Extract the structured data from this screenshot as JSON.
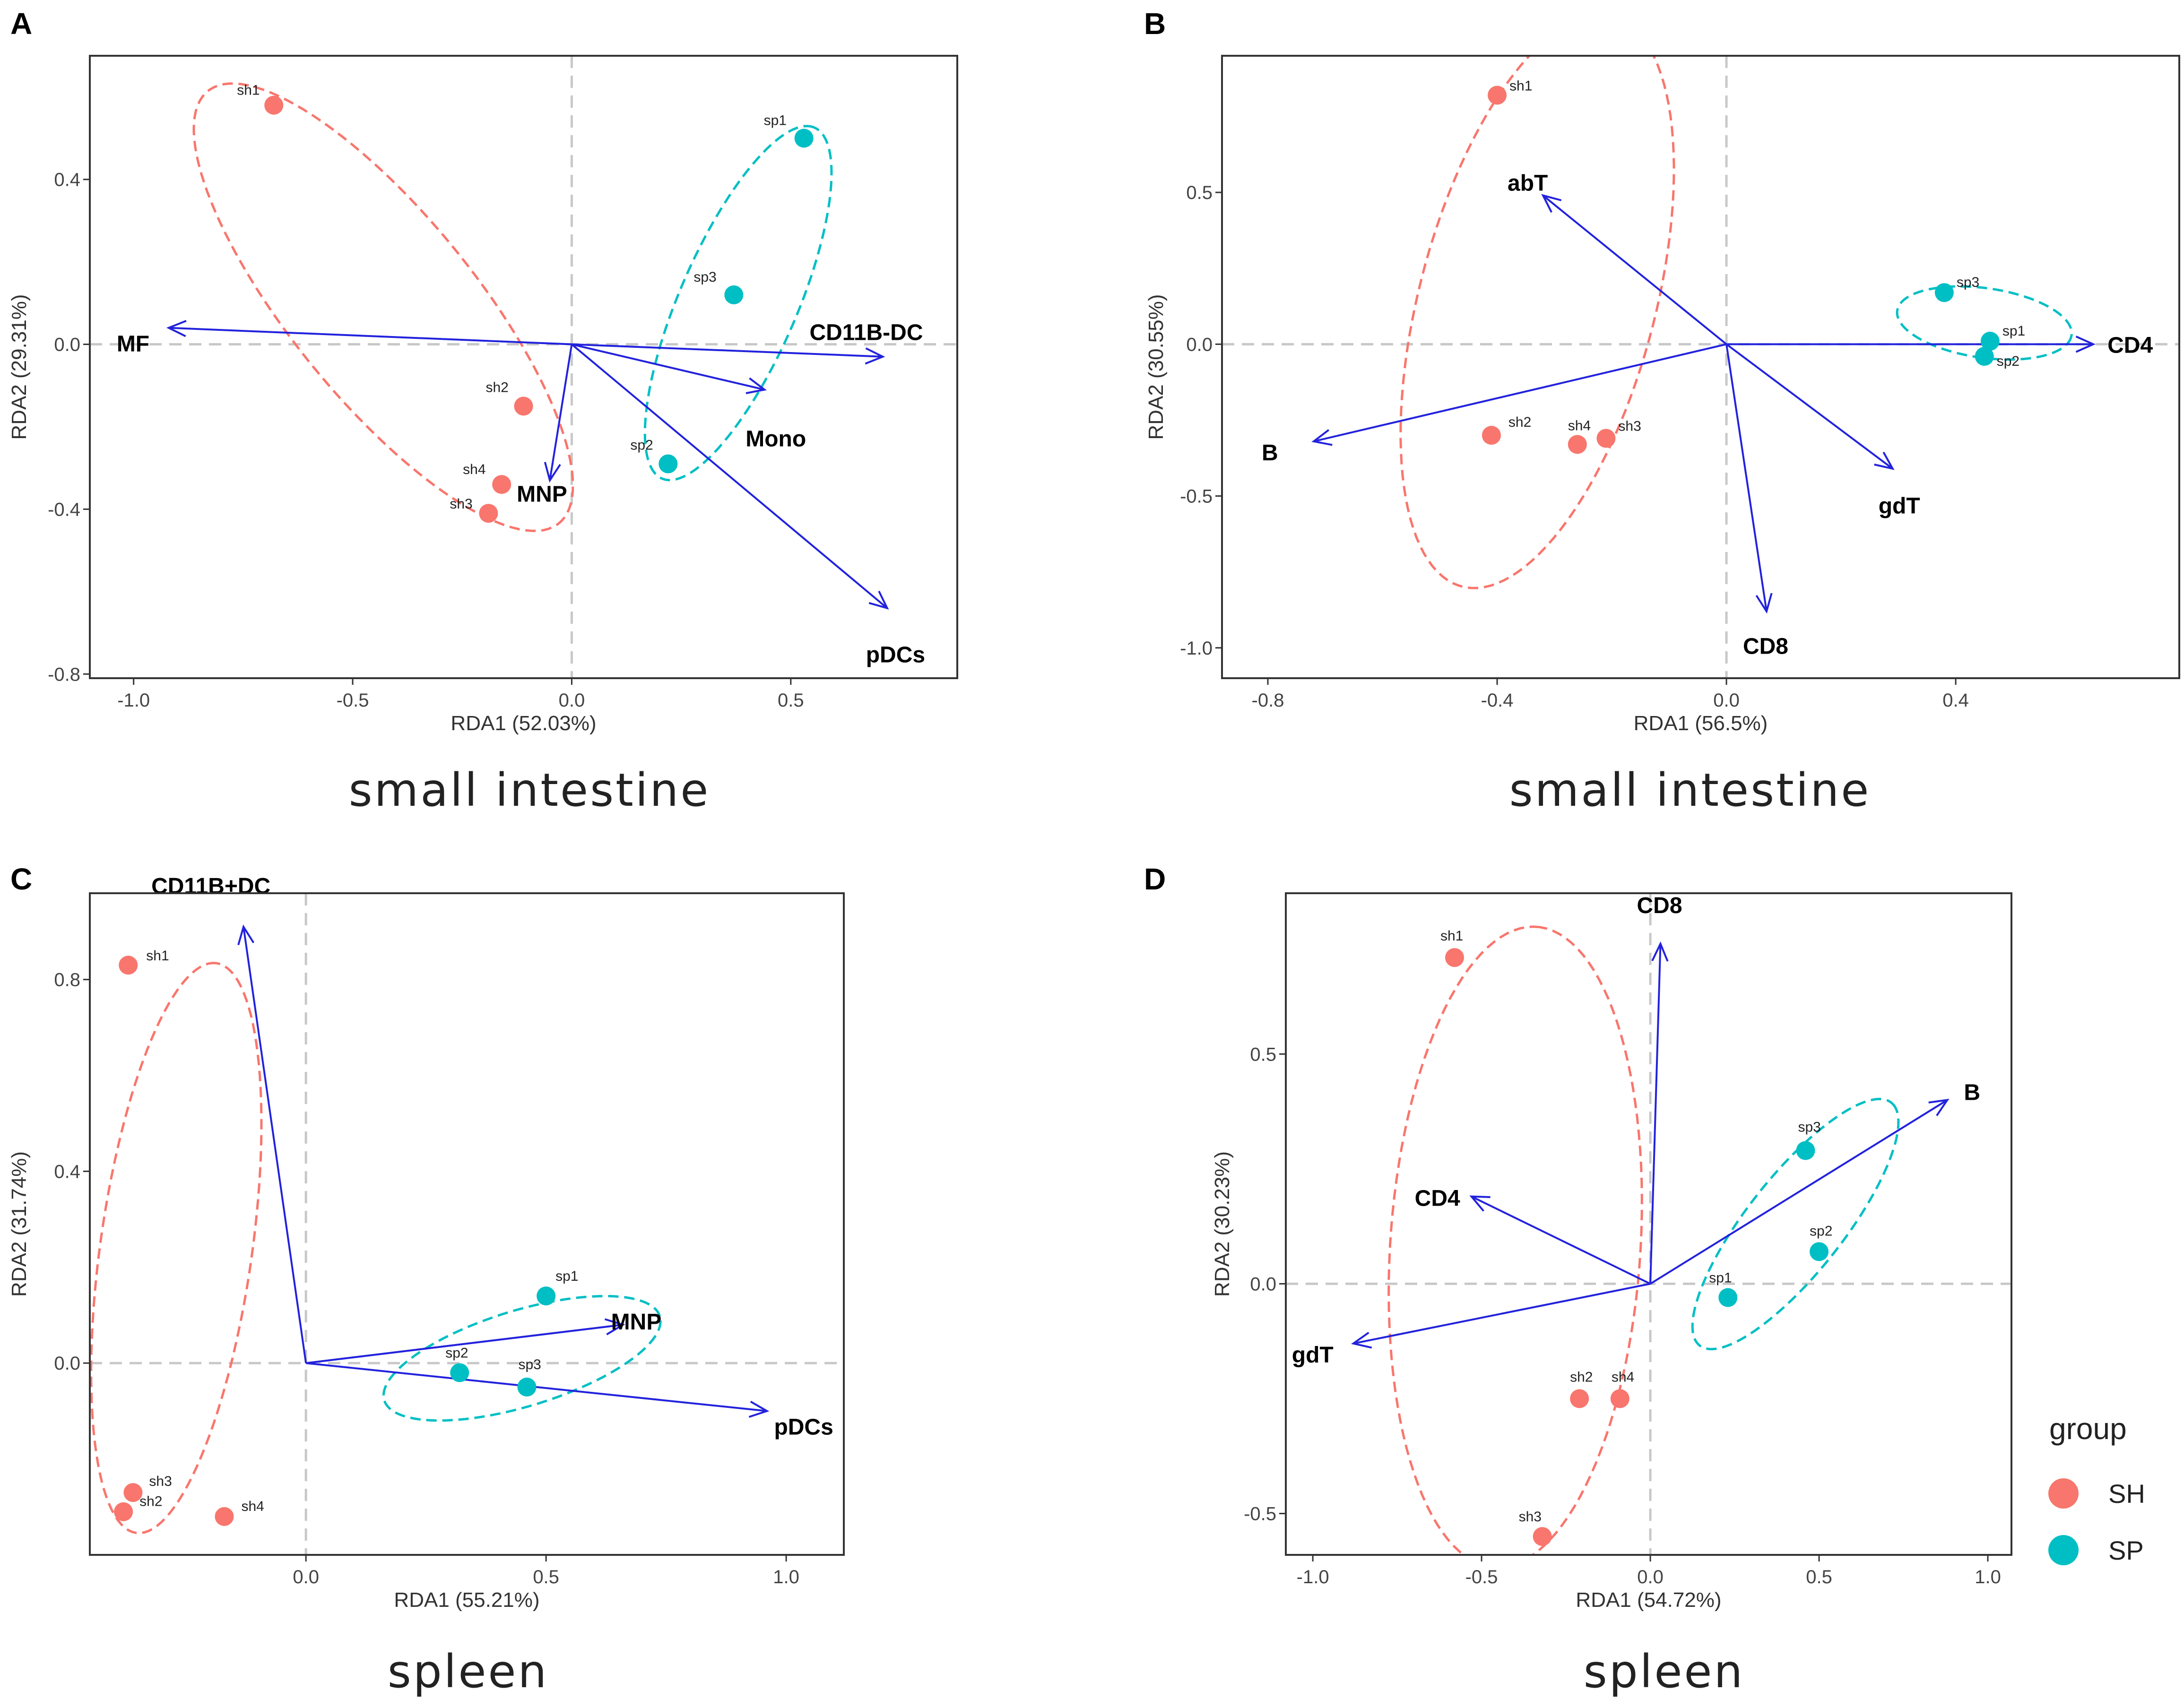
{
  "colors": {
    "sh": "#F8766D",
    "sp": "#00BFC4",
    "arrow": "#2222DD",
    "zero": "#c8c8c8"
  },
  "legend": {
    "title": "group",
    "items": [
      {
        "key": "sh",
        "label": "SH"
      },
      {
        "key": "sp",
        "label": "SP"
      }
    ]
  },
  "chart_data": [
    {
      "type": "scatter",
      "panel": "A",
      "caption": "small intestine",
      "xlabel": "RDA1 (52.03%)",
      "ylabel": "RDA2 (29.31%)",
      "xlim": [
        -1.1,
        0.88
      ],
      "ylim": [
        -0.81,
        0.7
      ],
      "xticks": [
        -1.0,
        -0.5,
        0.0,
        0.5
      ],
      "xtick_labels": [
        "-1.0",
        "-0.5",
        "0.0",
        "0.5"
      ],
      "yticks": [
        -0.8,
        -0.4,
        0.0,
        0.4
      ],
      "ytick_labels": [
        "-0.8",
        "-0.4",
        "0.0",
        "0.4"
      ],
      "points": [
        {
          "label": "sh1",
          "group": "sh",
          "x": -0.68,
          "y": 0.58
        },
        {
          "label": "sh2",
          "group": "sh",
          "x": -0.11,
          "y": -0.15
        },
        {
          "label": "sh3",
          "group": "sh",
          "x": -0.19,
          "y": -0.41
        },
        {
          "label": "sh4",
          "group": "sh",
          "x": -0.16,
          "y": -0.34
        },
        {
          "label": "sp1",
          "group": "sp",
          "x": 0.53,
          "y": 0.5
        },
        {
          "label": "sp2",
          "group": "sp",
          "x": 0.22,
          "y": -0.29
        },
        {
          "label": "sp3",
          "group": "sp",
          "x": 0.37,
          "y": 0.12
        }
      ],
      "vectors": [
        {
          "label": "MF",
          "x": -0.92,
          "y": 0.04
        },
        {
          "label": "CD11B-DC",
          "x": 0.71,
          "y": -0.03
        },
        {
          "label": "Mono",
          "x": 0.44,
          "y": -0.11
        },
        {
          "label": "MNP",
          "x": -0.05,
          "y": -0.33
        },
        {
          "label": "pDCs",
          "x": 0.72,
          "y": -0.64
        }
      ],
      "ellipses": [
        {
          "group": "sh",
          "cx": -0.43,
          "cy": 0.09,
          "a": 0.66,
          "b": 0.215,
          "angle": -53
        },
        {
          "group": "sp",
          "cx": 0.38,
          "cy": 0.1,
          "a": 0.46,
          "b": 0.135,
          "angle": 68
        }
      ]
    },
    {
      "type": "scatter",
      "panel": "B",
      "caption": "small intestine",
      "xlabel": "RDA1 (56.5%)",
      "ylabel": "RDA2 (30.55%)",
      "xlim": [
        -0.88,
        0.79
      ],
      "ylim": [
        -1.1,
        0.95
      ],
      "xticks": [
        -0.8,
        -0.4,
        0.0,
        0.4
      ],
      "xtick_labels": [
        "-0.8",
        "-0.4",
        "0.0",
        "0.4"
      ],
      "yticks": [
        -1.0,
        -0.5,
        0.0,
        0.5
      ],
      "ytick_labels": [
        "-1.0",
        "-0.5",
        "0.0",
        "0.5"
      ],
      "points": [
        {
          "label": "sh1",
          "group": "sh",
          "x": -0.4,
          "y": 0.82
        },
        {
          "label": "sh2",
          "group": "sh",
          "x": -0.41,
          "y": -0.3
        },
        {
          "label": "sh3",
          "group": "sh",
          "x": -0.21,
          "y": -0.31
        },
        {
          "label": "sh4",
          "group": "sh",
          "x": -0.26,
          "y": -0.33
        },
        {
          "label": "sp1",
          "group": "sp",
          "x": 0.46,
          "y": 0.01
        },
        {
          "label": "sp2",
          "group": "sp",
          "x": 0.45,
          "y": -0.04
        },
        {
          "label": "sp3",
          "group": "sp",
          "x": 0.38,
          "y": 0.17
        }
      ],
      "vectors": [
        {
          "label": "abT",
          "x": -0.32,
          "y": 0.49
        },
        {
          "label": "B",
          "x": -0.72,
          "y": -0.32
        },
        {
          "label": "CD4",
          "x": 0.64,
          "y": 0.0
        },
        {
          "label": "gdT",
          "x": 0.29,
          "y": -0.41
        },
        {
          "label": "CD8",
          "x": 0.07,
          "y": -0.88
        }
      ],
      "ellipses": [
        {
          "group": "sh",
          "cx": -0.33,
          "cy": 0.14,
          "a": 0.95,
          "b": 0.21,
          "angle": 83
        },
        {
          "group": "sp",
          "cx": 0.45,
          "cy": 0.07,
          "a": 0.16,
          "b": 0.11,
          "angle": -25
        }
      ]
    },
    {
      "type": "scatter",
      "panel": "C",
      "caption": "spleen",
      "xlabel": "RDA1 (55.21%)",
      "ylabel": "RDA2 (31.74%)",
      "xlim": [
        -0.45,
        1.12
      ],
      "ylim": [
        -0.4,
        0.98
      ],
      "xticks": [
        0.0,
        0.5,
        1.0
      ],
      "xtick_labels": [
        "0.0",
        "0.5",
        "1.0"
      ],
      "yticks": [
        0.0,
        0.4,
        0.8
      ],
      "ytick_labels": [
        "0.0",
        "0.4",
        "0.8"
      ],
      "points": [
        {
          "label": "sh1",
          "group": "sh",
          "x": -0.37,
          "y": 0.83
        },
        {
          "label": "sh2",
          "group": "sh",
          "x": -0.38,
          "y": -0.31
        },
        {
          "label": "sh3",
          "group": "sh",
          "x": -0.36,
          "y": -0.27
        },
        {
          "label": "sh4",
          "group": "sh",
          "x": -0.17,
          "y": -0.32
        },
        {
          "label": "sp1",
          "group": "sp",
          "x": 0.5,
          "y": 0.14
        },
        {
          "label": "sp2",
          "group": "sp",
          "x": 0.32,
          "y": -0.02
        },
        {
          "label": "sp3",
          "group": "sp",
          "x": 0.46,
          "y": -0.05
        }
      ],
      "vectors": [
        {
          "label": "CD11B+DC",
          "x": -0.13,
          "y": 0.91
        },
        {
          "label": "MNP",
          "x": 0.66,
          "y": 0.08
        },
        {
          "label": "pDCs",
          "x": 0.96,
          "y": -0.1
        }
      ],
      "ellipses": [
        {
          "group": "sh",
          "cx": -0.27,
          "cy": 0.24,
          "a": 0.6,
          "b": 0.158,
          "angle": 82
        },
        {
          "group": "sp",
          "cx": 0.45,
          "cy": 0.01,
          "a": 0.3,
          "b": 0.1,
          "angle": 17
        }
      ]
    },
    {
      "type": "scatter",
      "panel": "D",
      "caption": "spleen",
      "xlabel": "RDA1 (54.72%)",
      "ylabel": "RDA2 (30.23%)",
      "xlim": [
        -1.08,
        1.07
      ],
      "ylim": [
        -0.59,
        0.85
      ],
      "xticks": [
        -1.0,
        -0.5,
        0.0,
        0.5,
        1.0
      ],
      "xtick_labels": [
        "-1.0",
        "-0.5",
        "0.0",
        "0.5",
        "1.0"
      ],
      "yticks": [
        -0.5,
        0.0,
        0.5
      ],
      "ytick_labels": [
        "-0.5",
        "0.0",
        "0.5"
      ],
      "points": [
        {
          "label": "sh1",
          "group": "sh",
          "x": -0.58,
          "y": 0.71
        },
        {
          "label": "sh2",
          "group": "sh",
          "x": -0.21,
          "y": -0.25
        },
        {
          "label": "sh3",
          "group": "sh",
          "x": -0.32,
          "y": -0.55
        },
        {
          "label": "sh4",
          "group": "sh",
          "x": -0.09,
          "y": -0.25
        },
        {
          "label": "sp1",
          "group": "sp",
          "x": 0.23,
          "y": -0.03
        },
        {
          "label": "sp2",
          "group": "sp",
          "x": 0.5,
          "y": 0.07
        },
        {
          "label": "sp3",
          "group": "sp",
          "x": 0.46,
          "y": 0.29
        }
      ],
      "vectors": [
        {
          "label": "CD8",
          "x": 0.03,
          "y": 0.74
        },
        {
          "label": "B",
          "x": 0.88,
          "y": 0.4
        },
        {
          "label": "CD4",
          "x": -0.53,
          "y": 0.19
        },
        {
          "label": "gdT",
          "x": -0.88,
          "y": -0.13
        }
      ],
      "ellipses": [
        {
          "group": "sh",
          "cx": -0.4,
          "cy": 0.08,
          "a": 0.7,
          "b": 0.37,
          "angle": 84
        },
        {
          "group": "sp",
          "cx": 0.43,
          "cy": 0.13,
          "a": 0.39,
          "b": 0.123,
          "angle": 41
        }
      ]
    }
  ]
}
